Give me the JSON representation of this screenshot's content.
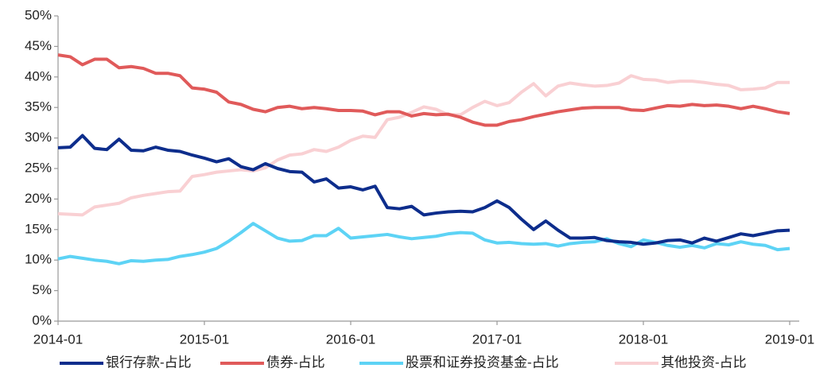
{
  "chart_data": {
    "type": "line",
    "categories": [
      "2014-01",
      null,
      null,
      null,
      null,
      null,
      null,
      null,
      null,
      null,
      null,
      null,
      "2015-01",
      null,
      null,
      null,
      null,
      null,
      null,
      null,
      null,
      null,
      null,
      null,
      "2016-01",
      null,
      null,
      null,
      null,
      null,
      null,
      null,
      null,
      null,
      null,
      null,
      "2017-01",
      null,
      null,
      null,
      null,
      null,
      null,
      null,
      null,
      null,
      null,
      null,
      "2018-01",
      null,
      null,
      null,
      null,
      null,
      null,
      null,
      null,
      null,
      null,
      null,
      "2019-01"
    ],
    "series": [
      {
        "name": "银行存款-占比",
        "color": "#0d2d8c",
        "values": [
          28.4,
          28.5,
          30.4,
          28.3,
          28.1,
          29.8,
          28.0,
          27.9,
          28.5,
          28.0,
          27.8,
          27.2,
          26.7,
          26.1,
          26.6,
          25.3,
          24.8,
          25.8,
          25.0,
          24.5,
          24.4,
          22.8,
          23.3,
          21.8,
          22.0,
          21.5,
          22.1,
          18.6,
          18.4,
          18.8,
          17.4,
          17.7,
          17.9,
          18.0,
          17.9,
          18.6,
          19.7,
          18.6,
          16.7,
          15.0,
          16.4,
          14.9,
          13.6,
          13.6,
          13.7,
          13.2,
          13.0,
          12.9,
          12.6,
          12.8,
          13.2,
          13.3,
          12.8,
          13.6,
          13.1,
          13.7,
          14.3,
          14.0,
          14.4,
          14.8,
          14.9
        ]
      },
      {
        "name": "债券-占比",
        "color": "#e05a5a",
        "values": [
          43.6,
          43.3,
          42.0,
          42.9,
          42.9,
          41.5,
          41.7,
          41.4,
          40.6,
          40.6,
          40.2,
          38.2,
          38.0,
          37.5,
          35.9,
          35.5,
          34.7,
          34.3,
          35.0,
          35.2,
          34.8,
          35.0,
          34.8,
          34.5,
          34.5,
          34.4,
          33.8,
          34.3,
          34.3,
          33.6,
          34.0,
          33.8,
          33.9,
          33.4,
          32.6,
          32.1,
          32.1,
          32.7,
          33.0,
          33.5,
          33.9,
          34.3,
          34.6,
          34.9,
          35.0,
          35.0,
          35.0,
          34.6,
          34.5,
          34.9,
          35.3,
          35.2,
          35.5,
          35.3,
          35.4,
          35.2,
          34.8,
          35.2,
          34.8,
          34.3,
          34.0
        ]
      },
      {
        "name": "股票和证券投资基金-占比",
        "color": "#5dd3f5",
        "values": [
          10.2,
          10.6,
          10.3,
          10.0,
          9.8,
          9.4,
          9.9,
          9.8,
          10.0,
          10.1,
          10.6,
          10.9,
          11.3,
          11.9,
          13.1,
          14.5,
          16.0,
          14.8,
          13.6,
          13.1,
          13.2,
          14.0,
          14.0,
          15.2,
          13.6,
          13.8,
          14.0,
          14.2,
          13.8,
          13.5,
          13.7,
          13.9,
          14.3,
          14.5,
          14.4,
          13.3,
          12.8,
          12.9,
          12.7,
          12.6,
          12.7,
          12.3,
          12.7,
          12.9,
          13.0,
          13.5,
          12.7,
          12.2,
          13.3,
          12.9,
          12.4,
          12.1,
          12.4,
          12.0,
          12.7,
          12.5,
          13.0,
          12.6,
          12.4,
          11.7,
          11.9
        ]
      },
      {
        "name": "其他投资-占比",
        "color": "#f9d0d3",
        "values": [
          17.6,
          17.5,
          17.4,
          18.7,
          19.0,
          19.3,
          20.2,
          20.6,
          20.9,
          21.2,
          21.3,
          23.7,
          24.0,
          24.4,
          24.6,
          24.8,
          24.6,
          25.1,
          26.4,
          27.2,
          27.4,
          28.1,
          27.8,
          28.5,
          29.6,
          30.3,
          30.1,
          33.0,
          33.4,
          34.2,
          35.1,
          34.7,
          33.8,
          33.8,
          35.0,
          36.0,
          35.3,
          35.8,
          37.5,
          38.9,
          36.9,
          38.5,
          39.0,
          38.7,
          38.5,
          38.6,
          39.0,
          40.2,
          39.6,
          39.5,
          39.1,
          39.3,
          39.3,
          39.1,
          38.8,
          38.6,
          37.9,
          38.0,
          38.2,
          39.1,
          39.1
        ]
      }
    ],
    "ylim": [
      0,
      50
    ],
    "yticks": [
      {
        "value": 0,
        "label": "0%"
      },
      {
        "value": 5,
        "label": "5%"
      },
      {
        "value": 10,
        "label": "10%"
      },
      {
        "value": 15,
        "label": "15%"
      },
      {
        "value": 20,
        "label": "20%"
      },
      {
        "value": 25,
        "label": "25%"
      },
      {
        "value": 30,
        "label": "30%"
      },
      {
        "value": 35,
        "label": "35%"
      },
      {
        "value": 40,
        "label": "40%"
      },
      {
        "value": 45,
        "label": "45%"
      },
      {
        "value": 50,
        "label": "50%"
      }
    ],
    "grid": false,
    "legend": "bottom"
  }
}
